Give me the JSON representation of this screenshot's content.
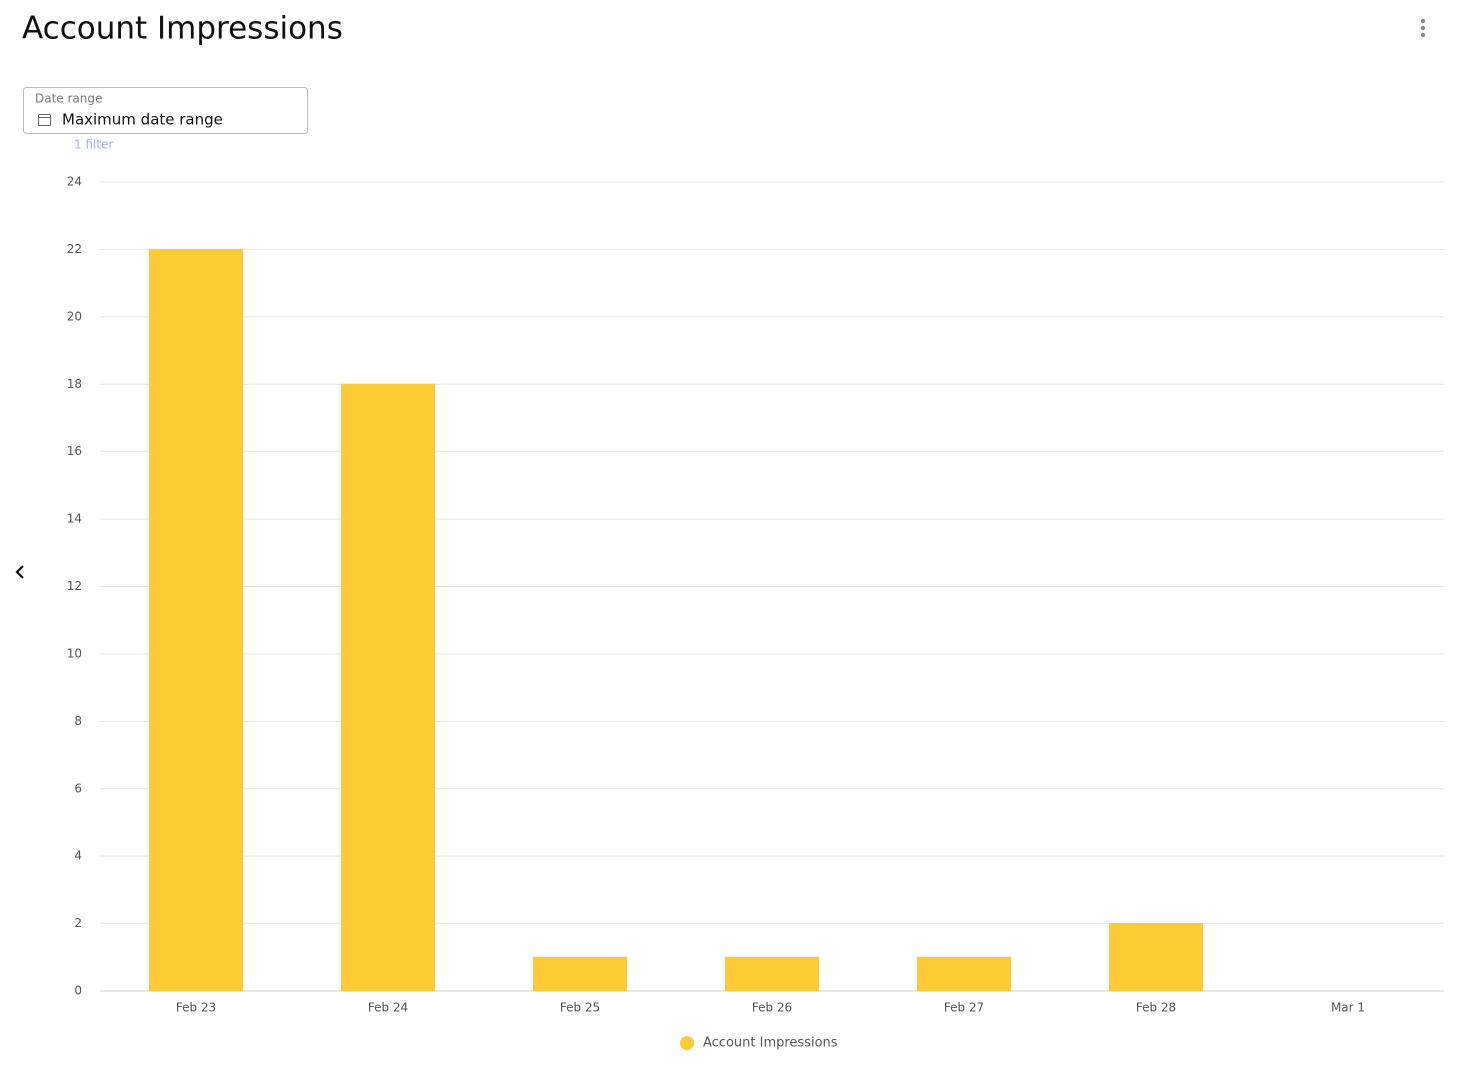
{
  "header": {
    "title": "Account Impressions"
  },
  "filter": {
    "label": "Date range",
    "value": "Maximum date range",
    "count": "1 filter"
  },
  "chart_data": {
    "type": "bar",
    "categories": [
      "Feb 23",
      "Feb 24",
      "Feb 25",
      "Feb 26",
      "Feb 27",
      "Feb 28",
      "Mar 1"
    ],
    "series": [
      {
        "name": "Account Impressions",
        "color": "#fdcb33",
        "values": [
          22,
          18,
          1,
          1,
          1,
          2,
          0
        ]
      }
    ],
    "ylim": [
      0,
      24
    ],
    "yticks": [
      0,
      2,
      4,
      6,
      8,
      10,
      12,
      14,
      16,
      18,
      20,
      22,
      24
    ],
    "grid": true,
    "legend": "bottom"
  }
}
